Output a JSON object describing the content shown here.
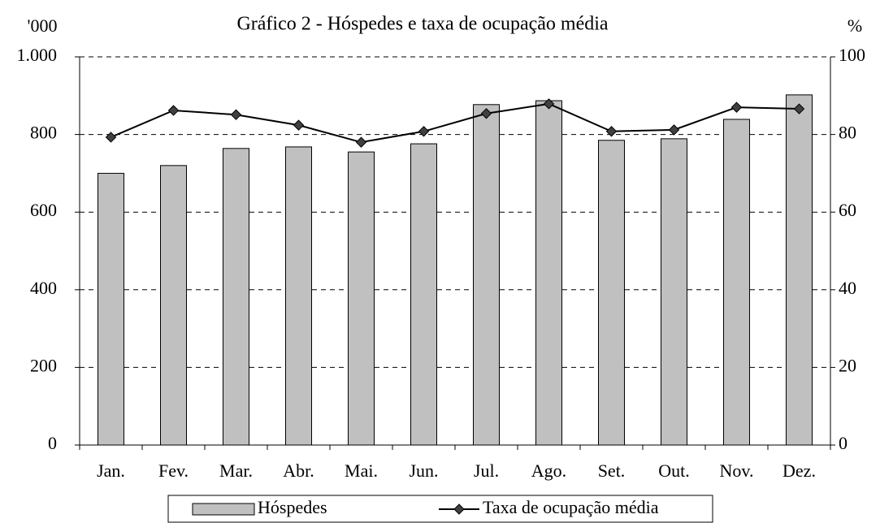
{
  "chart_data": {
    "type": "combo",
    "title": "Gráfico 2 - Hóspedes e taxa de ocupação média",
    "y_label": "'000",
    "y2_label": "%",
    "categories": [
      "Jan.",
      "Fev.",
      "Mar.",
      "Abr.",
      "Mai.",
      "Jun.",
      "Jul.",
      "Ago.",
      "Set.",
      "Out.",
      "Nov.",
      "Dez."
    ],
    "series": [
      {
        "name": "Hóspedes",
        "type": "bar",
        "color": "#c0c0c0",
        "values": [
          700,
          720,
          764,
          768,
          755,
          776,
          877,
          887,
          785,
          789,
          839,
          902
        ]
      },
      {
        "name": "Taxa de ocupação média",
        "type": "line",
        "axis": "y2",
        "color": "#000000",
        "values": [
          79.3,
          86.2,
          85.1,
          82.4,
          78.0,
          80.8,
          85.4,
          87.9,
          80.8,
          81.2,
          87.0,
          86.6
        ]
      }
    ],
    "ylim": [
      0,
      1000
    ],
    "yticks": [
      0,
      200,
      400,
      600,
      800,
      {
        "value": 1000,
        "label": "1.000"
      }
    ],
    "y2lim": [
      0,
      100
    ],
    "y2ticks": [
      0,
      20,
      40,
      60,
      80,
      100
    ],
    "grid": true,
    "legend": "bottom"
  }
}
